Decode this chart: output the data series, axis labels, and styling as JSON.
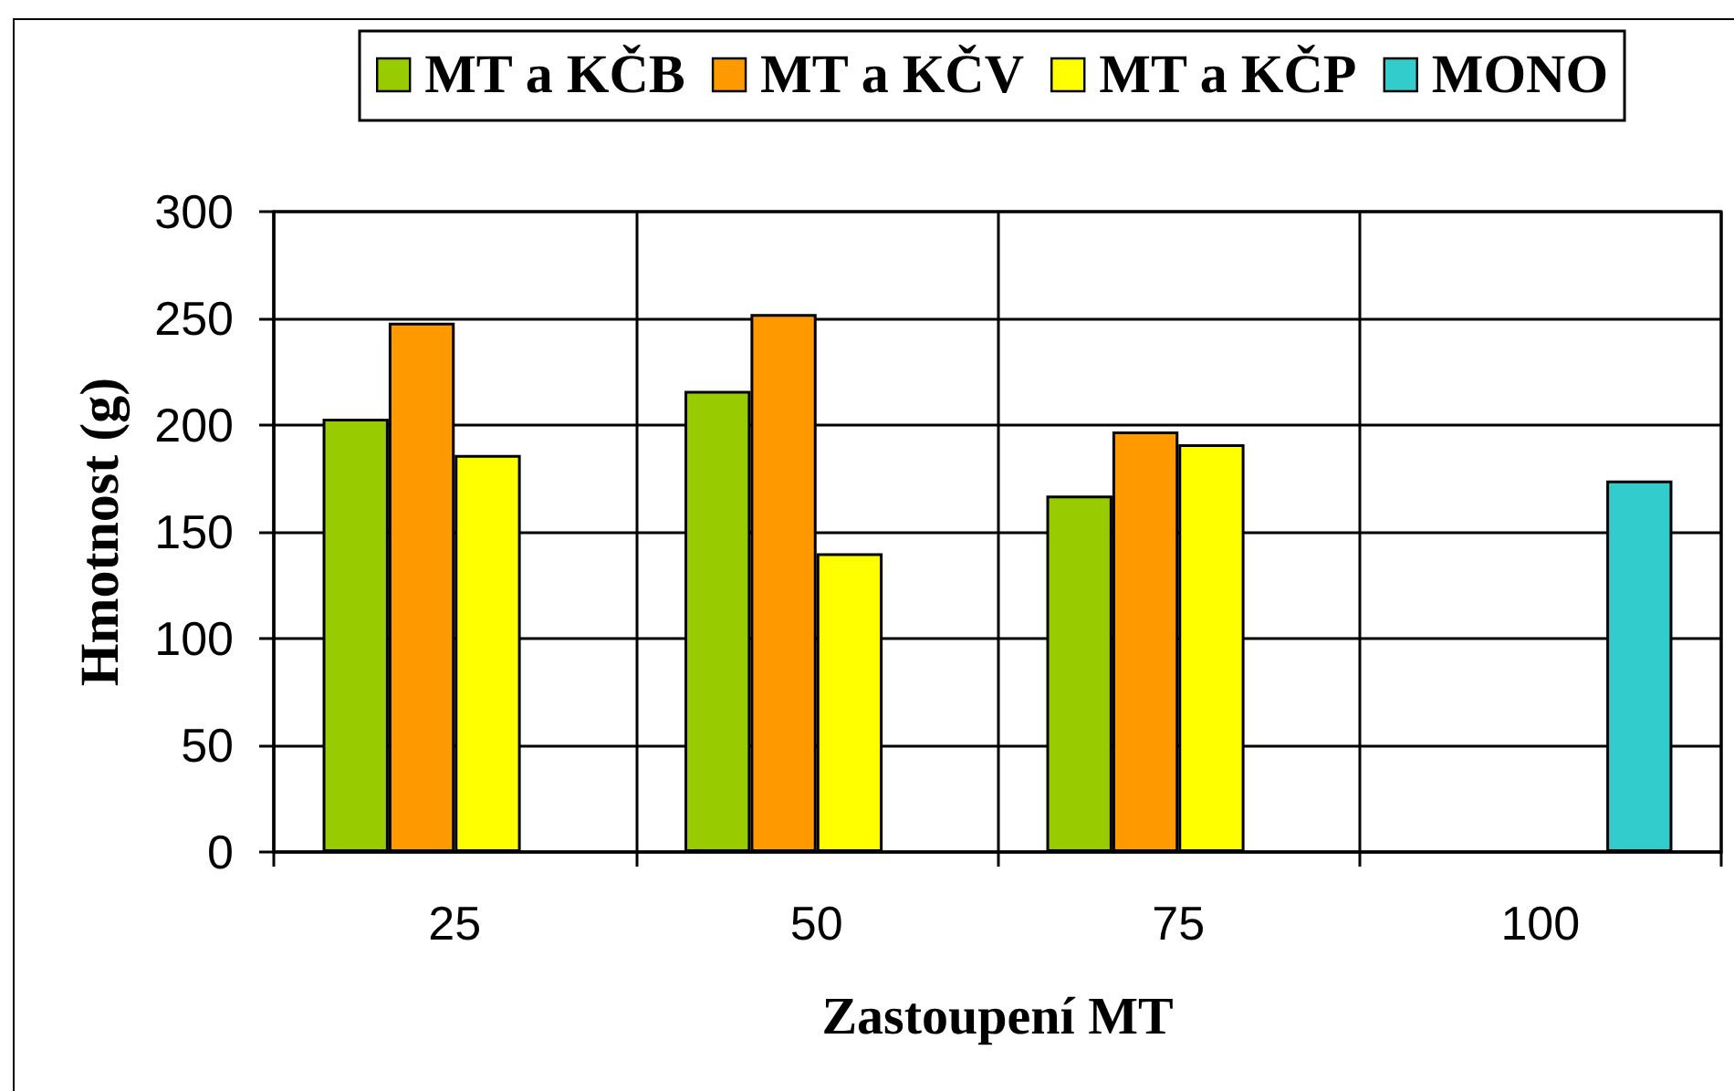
{
  "chart_data": {
    "type": "bar",
    "xlabel": "Zastoupení MT",
    "ylabel": "Hmotnost (g)",
    "categories": [
      "25",
      "50",
      "75",
      "100"
    ],
    "series": [
      {
        "name": "MT a KČB",
        "color": "#99cc00",
        "values": [
          203,
          216,
          167,
          null
        ]
      },
      {
        "name": "MT a KČV",
        "color": "#ff9900",
        "values": [
          248,
          252,
          197,
          null
        ]
      },
      {
        "name": "MT a KČP",
        "color": "#ffff00",
        "values": [
          186,
          140,
          191,
          null
        ]
      },
      {
        "name": "MONO",
        "color": "#33cccc",
        "values": [
          null,
          null,
          null,
          174
        ]
      }
    ],
    "ylim": [
      0,
      300
    ],
    "yticks": [
      0,
      50,
      100,
      150,
      200,
      250,
      300
    ],
    "grid": true,
    "legend": "top"
  }
}
